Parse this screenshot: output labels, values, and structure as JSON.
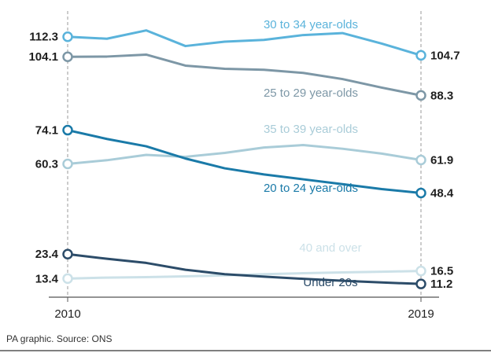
{
  "chart_data": {
    "type": "line",
    "x": [
      2010,
      2011,
      2012,
      2013,
      2014,
      2015,
      2016,
      2017,
      2018,
      2019
    ],
    "xticks": [
      "2010",
      "2019"
    ],
    "series": [
      {
        "name": "30 to 34 year-olds",
        "color": "#5ab3db",
        "values": [
          112.3,
          111.5,
          114.9,
          108.5,
          110.3,
          111.0,
          113.0,
          113.8,
          109.5,
          104.7
        ],
        "start_label": "112.3",
        "end_label": "104.7"
      },
      {
        "name": "25 to 29 year-olds",
        "color": "#7d97a6",
        "values": [
          104.1,
          104.2,
          105.0,
          100.5,
          99.2,
          98.8,
          97.5,
          95.0,
          91.5,
          88.3
        ],
        "start_label": "104.1",
        "end_label": "88.3"
      },
      {
        "name": "35 to 39 year-olds",
        "color": "#a9ccd8",
        "values": [
          60.3,
          61.8,
          64.0,
          63.2,
          64.8,
          67.0,
          68.0,
          66.5,
          64.5,
          61.9
        ],
        "start_label": "60.3",
        "end_label": "61.9"
      },
      {
        "name": "20 to 24 year-olds",
        "color": "#1a7aa8",
        "values": [
          74.1,
          70.5,
          67.5,
          62.5,
          58.5,
          56.0,
          54.0,
          52.0,
          50.0,
          48.4
        ],
        "start_label": "74.1",
        "end_label": "48.4"
      },
      {
        "name": "40 and over",
        "color": "#cce1e8",
        "values": [
          13.4,
          13.8,
          14.0,
          14.3,
          14.7,
          15.2,
          15.6,
          15.9,
          16.2,
          16.5
        ],
        "start_label": "13.4",
        "end_label": "16.5"
      },
      {
        "name": "Under 20s",
        "color": "#2c4c69",
        "values": [
          23.4,
          21.5,
          19.8,
          17.0,
          15.2,
          14.2,
          13.3,
          12.5,
          11.8,
          11.2
        ],
        "start_label": "23.4",
        "end_label": "11.2"
      }
    ],
    "ylim": [
      0,
      120
    ],
    "grid": false
  },
  "source": "PA graphic. Source: ONS"
}
